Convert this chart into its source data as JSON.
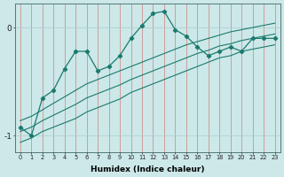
{
  "xlabel": "Humidex (Indice chaleur)",
  "bg_color": "#cce8e8",
  "line_color": "#1a7a6e",
  "grid_color_v": "#d08080",
  "grid_color_h": "#aacccc",
  "x_values": [
    0,
    1,
    2,
    3,
    4,
    5,
    6,
    7,
    8,
    9,
    10,
    11,
    12,
    13,
    14,
    15,
    16,
    17,
    18,
    19,
    20,
    21,
    22,
    23
  ],
  "y_main": [
    -0.92,
    -1.0,
    -0.65,
    -0.58,
    -0.38,
    -0.22,
    -0.22,
    -0.4,
    -0.36,
    -0.26,
    -0.1,
    0.02,
    0.13,
    0.15,
    -0.02,
    -0.08,
    -0.18,
    -0.26,
    -0.22,
    -0.18,
    -0.22,
    -0.1,
    -0.1,
    -0.1
  ],
  "y_upper": [
    -0.86,
    -0.82,
    -0.76,
    -0.7,
    -0.64,
    -0.58,
    -0.52,
    -0.48,
    -0.44,
    -0.4,
    -0.36,
    -0.32,
    -0.28,
    -0.24,
    -0.2,
    -0.16,
    -0.13,
    -0.1,
    -0.07,
    -0.04,
    -0.02,
    0.0,
    0.02,
    0.04
  ],
  "y_lower": [
    -1.06,
    -1.02,
    -0.96,
    -0.92,
    -0.88,
    -0.84,
    -0.78,
    -0.74,
    -0.7,
    -0.66,
    -0.6,
    -0.56,
    -0.52,
    -0.48,
    -0.44,
    -0.4,
    -0.36,
    -0.32,
    -0.28,
    -0.26,
    -0.22,
    -0.2,
    -0.18,
    -0.16
  ],
  "y_mid": [
    -0.96,
    -0.92,
    -0.86,
    -0.81,
    -0.76,
    -0.71,
    -0.65,
    -0.61,
    -0.57,
    -0.53,
    -0.48,
    -0.44,
    -0.4,
    -0.36,
    -0.32,
    -0.28,
    -0.24,
    -0.21,
    -0.17,
    -0.15,
    -0.12,
    -0.1,
    -0.08,
    -0.06
  ],
  "ylim": [
    -1.15,
    0.22
  ],
  "yticks": [
    -1.0,
    0.0
  ],
  "ytick_labels": [
    "-1",
    "0"
  ],
  "figwidth": 3.2,
  "figheight": 2.0,
  "dpi": 100
}
